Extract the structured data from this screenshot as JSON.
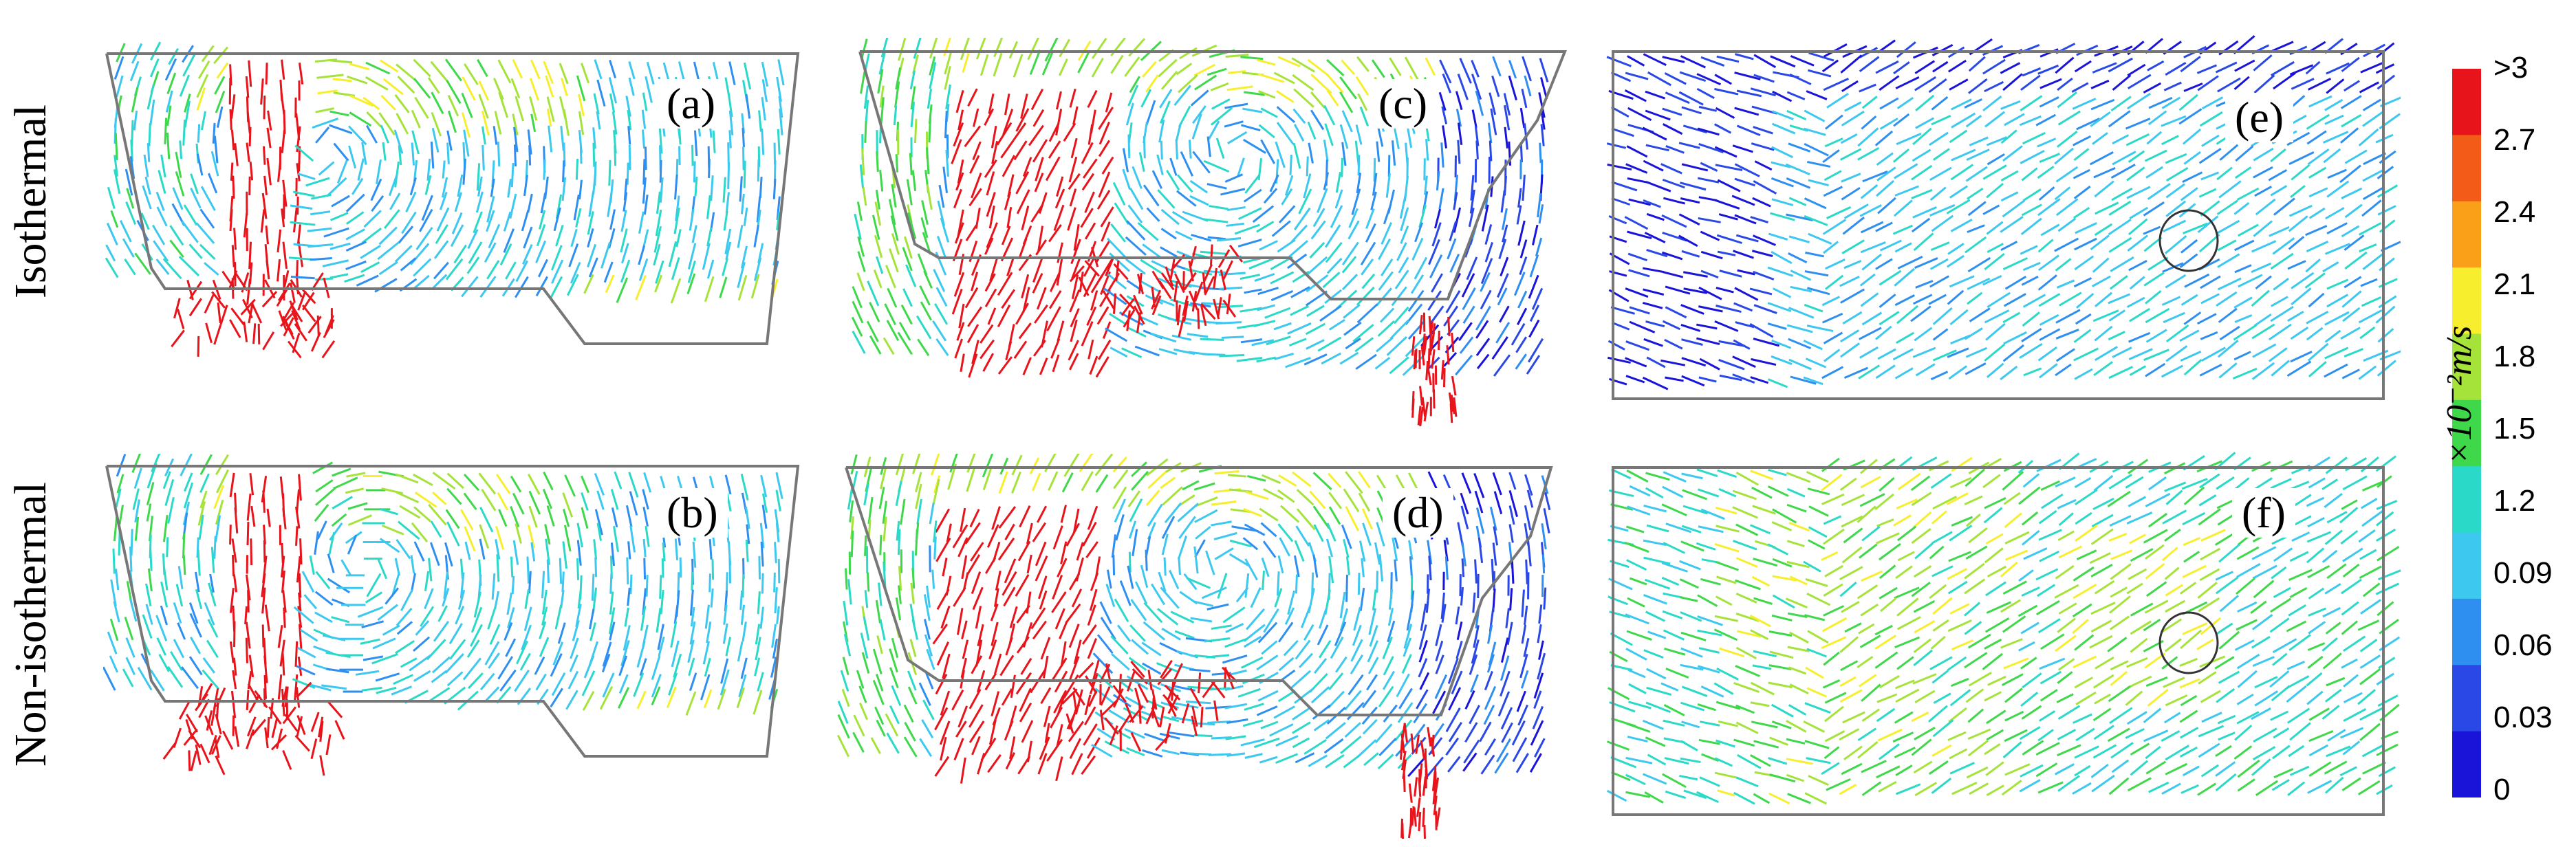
{
  "rows": {
    "top_label": "Isothermal",
    "bottom_label": "Non-isothermal"
  },
  "panels": [
    {
      "id": "a",
      "label": "(a)"
    },
    {
      "id": "b",
      "label": "(b)"
    },
    {
      "id": "c",
      "label": "(c)"
    },
    {
      "id": "d",
      "label": "(d)"
    },
    {
      "id": "e",
      "label": "(e)"
    },
    {
      "id": "f",
      "label": "(f)"
    }
  ],
  "colorbar": {
    "unit": "×10⁻²m/s",
    "ticks": [
      ">3",
      "2.7",
      "2.4",
      "2.1",
      "1.8",
      "1.5",
      "1.2",
      "0.09",
      "0.06",
      "0.03",
      "0"
    ],
    "colors": [
      "#e8141b",
      "#f25b18",
      "#f9a018",
      "#f7ee2e",
      "#a6e33a",
      "#3fd84a",
      "#2bd9c9",
      "#3cc8ef",
      "#2e8ff0",
      "#2a48e6",
      "#1a14d8"
    ]
  }
}
